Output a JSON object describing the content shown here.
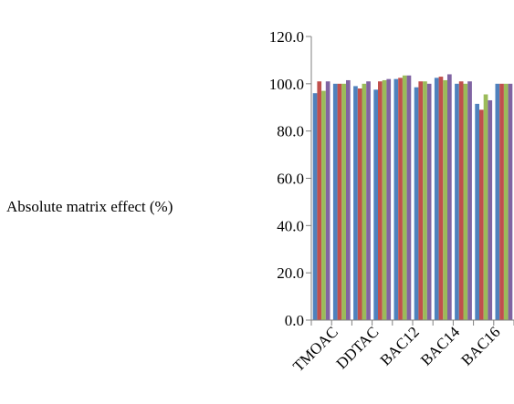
{
  "chart_data": {
    "type": "bar",
    "title": "",
    "xlabel": "",
    "ylabel": "Absolute matrix effect (%)",
    "ylim": [
      0,
      120
    ],
    "y_ticks": [
      "0.0",
      "20.0",
      "40.0",
      "60.0",
      "80.0",
      "100.0",
      "120.0"
    ],
    "x_tick_labels": [
      "TMOAC",
      "DDTAC",
      "BAC12",
      "BAC14",
      "BAC16"
    ],
    "categories": [
      "1",
      "2",
      "3",
      "4",
      "5",
      "6",
      "7",
      "8",
      "9",
      "10"
    ],
    "grid": false,
    "legend": "none",
    "series": [
      {
        "color": "#4F81BD",
        "values": [
          96.0,
          100.0,
          99.0,
          97.5,
          102.0,
          98.5,
          102.5,
          100.0,
          91.5,
          100.0
        ]
      },
      {
        "color": "#C0504D",
        "values": [
          101.0,
          100.0,
          98.0,
          101.0,
          102.5,
          101.0,
          103.0,
          101.0,
          89.0,
          100.0
        ]
      },
      {
        "color": "#9BBB59",
        "values": [
          97.0,
          100.0,
          100.0,
          101.5,
          103.5,
          101.0,
          101.5,
          100.0,
          95.5,
          100.0
        ]
      },
      {
        "color": "#8064A2",
        "values": [
          101.0,
          101.5,
          101.0,
          102.0,
          103.5,
          100.0,
          104.0,
          101.0,
          93.0,
          100.0
        ]
      }
    ]
  }
}
